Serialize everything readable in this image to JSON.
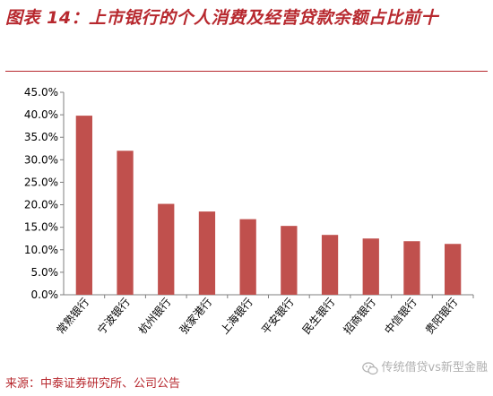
{
  "title": "图表 14：上市银行的个人消费及经营贷款余额占比前十",
  "source": "来源：中泰证券研究所、公司公告",
  "watermark": "传统借贷vs新型金融",
  "colors": {
    "bar": "#c0504d",
    "title": "#b7282e",
    "axis": "#7f7f7f"
  },
  "chart_data": {
    "type": "bar",
    "categories": [
      "常熟银行",
      "宁波银行",
      "杭州银行",
      "张家港行",
      "上海银行",
      "平安银行",
      "民生银行",
      "招商银行",
      "中信银行",
      "贵阳银行"
    ],
    "values": [
      39.8,
      32.0,
      20.2,
      18.5,
      16.8,
      15.3,
      13.3,
      12.5,
      11.9,
      11.3
    ],
    "unit": "%",
    "ylim": [
      0,
      45
    ],
    "yticks": [
      "0.0%",
      "5.0%",
      "10.0%",
      "15.0%",
      "20.0%",
      "25.0%",
      "30.0%",
      "35.0%",
      "40.0%",
      "45.0%"
    ],
    "grid": false,
    "legend": "none"
  }
}
